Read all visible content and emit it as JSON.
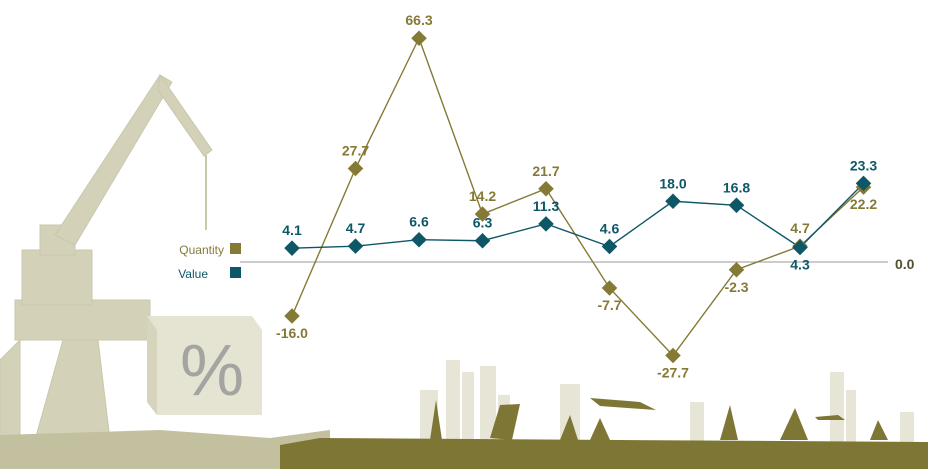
{
  "chart_data": {
    "type": "line",
    "x": [
      1,
      2,
      3,
      4,
      5,
      6,
      7,
      8,
      9,
      10
    ],
    "series": [
      {
        "name": "Quantity",
        "color": "#857a35",
        "values": [
          -16.0,
          27.7,
          66.3,
          14.2,
          21.7,
          -7.7,
          -27.7,
          -2.3,
          4.7,
          22.2
        ],
        "labels": [
          "-16.0",
          "27.7",
          "66.3",
          "14.2",
          "21.7",
          "-7.7",
          "-27.7",
          "-2.3",
          "4.7",
          "22.2"
        ]
      },
      {
        "name": "Value",
        "color": "#0e5767",
        "values": [
          4.1,
          4.7,
          6.6,
          6.3,
          11.3,
          4.6,
          18.0,
          16.8,
          4.3,
          23.3
        ],
        "labels": [
          "4.1",
          "4.7",
          "6.6",
          "6.3",
          "11.3",
          "4.6",
          "18.0",
          "16.8",
          "4.3",
          "23.3"
        ]
      }
    ],
    "zero_label": "0.0",
    "legend_position": "left",
    "grid": false
  },
  "decoration": {
    "percent_symbol": "%",
    "crane_color": "#d3d1b8",
    "skyline_color": "#e4e3d3",
    "ground_color": "#7e7635"
  }
}
